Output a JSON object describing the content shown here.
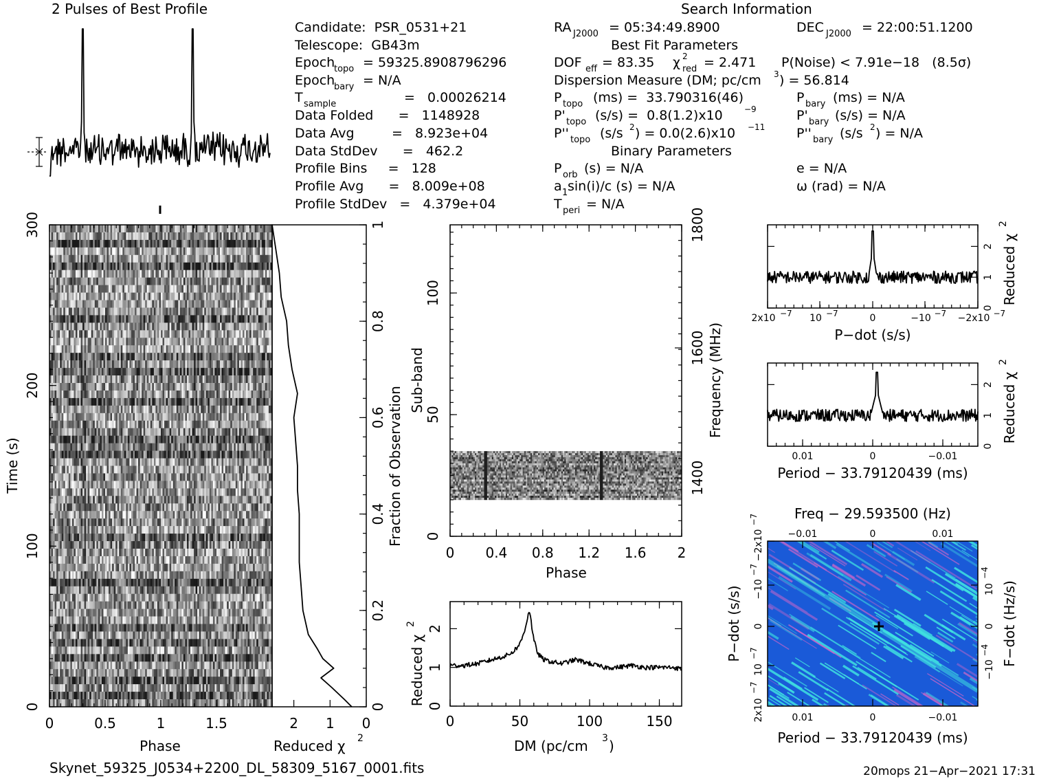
{
  "header": {
    "profile_title": "2 Pulses of Best Profile",
    "search_title": "Search Information",
    "best_fit_title": "Best Fit Parameters",
    "binary_title": "Binary Parameters"
  },
  "info": {
    "candidate": "Candidate:  PSR_0531+21",
    "telescope": "Telescope:  GB43m",
    "epoch_topo_label": "Epoch",
    "epoch_topo_sub": "topo",
    "epoch_topo_value": "= 59325.8908796296",
    "epoch_bary_label": "Epoch",
    "epoch_bary_sub": "bary",
    "epoch_bary_value": "= N/A",
    "t_sample_label": "T",
    "t_sample_sub": "sample",
    "t_sample_value": "=   0.00026214",
    "data_folded": "Data Folded      =   1148928",
    "data_avg": "Data Avg         =   8.923e+04",
    "data_stddev": "Data StdDev      =   462.2",
    "profile_bins": "Profile Bins     =   128",
    "profile_avg": "Profile Avg      =   8.009e+08",
    "profile_stddev": "Profile StdDev   =   4.379e+04"
  },
  "search": {
    "ra_label": "RA",
    "ra_sub": "J2000",
    "ra_value": "= 05:34:49.8900",
    "dec_label": "DEC",
    "dec_sub": "J2000",
    "dec_value": "= 22:00:51.1200",
    "dof_label": "DOF",
    "dof_sub": "eff",
    "dof_value": "= 83.35",
    "chi_label": "χ",
    "chi_sup": "2",
    "chi_sub": "red",
    "chi_value": "= 2.471",
    "pnoise": "P(Noise) < 7.91e−18   (8.5σ)",
    "dm_text": "Dispersion Measure (DM; pc/cm",
    "dm_sup": "3",
    "dm_value": ") = 56.814",
    "ptopo_label": "P",
    "ptopo_sub": "topo",
    "ptopo_value": "(ms) =  33.790316(46)",
    "pbary_label": "P",
    "pbary_sub": "bary",
    "pbary_value": "(ms) = N/A",
    "pdtopo_label": "P'",
    "pdtopo_sub": "topo",
    "pdtopo_value": "(s/s) =  0.8(1.2)x10",
    "pdtopo_exp": "−9",
    "pdbary_label": "P'",
    "pdbary_sub": "bary",
    "pdbary_value": "(s/s) = N/A",
    "pddtopo_label": "P''",
    "pddtopo_sub": "topo",
    "pddtopo_value": "(s/s",
    "pddtopo_sup": "2",
    "pddtopo_value2": ") = 0.0(2.6)x10",
    "pddtopo_exp": "−11",
    "pddbary_label": "P''",
    "pddbary_sub": "bary",
    "pddbary_value": "(s/s",
    "pddbary_sup": "2",
    "pddbary_value2": ") = N/A",
    "porb_label": "P",
    "porb_sub": "orb",
    "porb_value": "(s) = N/A",
    "e_value": "e = N/A",
    "a1_label": "a",
    "a1_sub": "1",
    "a1_value": "sin(i)/c (s) = N/A",
    "omega_value": "ω (rad) = N/A",
    "tperi_label": "T",
    "tperi_sub": "peri",
    "tperi_value": "= N/A"
  },
  "footer": {
    "filename": "Skynet_59325_J0534+2200_DL_58309_5167_0001.fits",
    "stamp": "20mops 21−Apr−2021 17:31"
  },
  "colors": {
    "greyscale": "#888888",
    "ppdot_bg": "#1a5ad8",
    "ppdot_hi": "#3fe0e0",
    "ppdot_lo": "#d066c8"
  },
  "chart_data": [
    {
      "type": "line",
      "id": "profile",
      "title": "2 Pulses of Best Profile",
      "x": [
        0,
        2
      ],
      "peaks_phase": [
        0.3,
        1.3
      ],
      "note_labels": []
    },
    {
      "type": "heatmap",
      "id": "time-phase",
      "xlabel": "Phase",
      "ylabel": "Time (s)",
      "xlim": [
        0,
        2
      ],
      "ylim": [
        0,
        300
      ],
      "xticks": [
        "0",
        "0.5",
        "1",
        "1.5"
      ],
      "yticks": [
        "0",
        "100",
        "200",
        "300"
      ]
    },
    {
      "type": "line",
      "id": "time-chi",
      "xlabel": "Reduced χ",
      "xlabel_sup": "2",
      "ylabel": "Fraction of Observation",
      "xlim": [
        2.6,
        0
      ],
      "ylim": [
        0,
        1
      ],
      "xticks": [
        "2",
        "1",
        "0"
      ],
      "yticks": [
        "0",
        "0.2",
        "0.4",
        "0.6",
        "0.8",
        "1"
      ],
      "fraction": [
        0,
        0.015,
        0.04,
        0.06,
        0.08,
        0.1,
        0.12,
        0.15,
        0.2,
        0.25,
        0.3,
        0.35,
        0.4,
        0.45,
        0.5,
        0.55,
        0.6,
        0.65,
        0.7,
        0.75,
        0.8,
        0.85,
        0.9,
        0.95,
        1
      ],
      "chi": [
        0.4,
        0.6,
        0.95,
        1.25,
        0.9,
        1.2,
        1.35,
        1.6,
        1.75,
        1.8,
        1.85,
        1.85,
        1.85,
        1.9,
        1.9,
        1.95,
        2.0,
        1.9,
        2.05,
        2.15,
        2.2,
        2.35,
        2.4,
        2.5,
        2.6
      ]
    },
    {
      "type": "heatmap",
      "id": "subband-phase",
      "xlabel": "Phase",
      "ylabel": "Sub-band",
      "ylabel2": "Frequency (MHz)",
      "xlim": [
        0,
        2
      ],
      "ylim": [
        0,
        128
      ],
      "xticks": [
        "0",
        "0.4",
        "0.8",
        "1.2",
        "1.6",
        "2"
      ],
      "yticks": [
        "0",
        "50",
        "100"
      ],
      "freq_ticks": [
        "1400",
        "1600",
        "1800"
      ],
      "band_subband": [
        15,
        35
      ]
    },
    {
      "type": "line",
      "id": "dm-chi",
      "xlabel": "DM (pc/cm",
      "xlabel_sup": "3",
      "xlabel_end": ")",
      "ylabel": "Reduced χ",
      "ylabel_sup": "2",
      "xlim": [
        0,
        166
      ],
      "ylim": [
        0,
        2.7
      ],
      "xticks": [
        "0",
        "50",
        "100",
        "150"
      ],
      "yticks": [
        "0",
        "1",
        "2"
      ],
      "x": [
        0,
        10,
        20,
        30,
        40,
        45,
        50,
        53,
        55,
        56.8,
        58,
        60,
        63,
        67,
        72,
        80,
        90,
        100,
        110,
        120,
        130,
        140,
        150,
        160,
        166
      ],
      "y": [
        1.05,
        1.05,
        1.1,
        1.2,
        1.3,
        1.4,
        1.6,
        1.9,
        2.2,
        2.5,
        2.2,
        1.7,
        1.35,
        1.2,
        1.15,
        1.1,
        1.2,
        1.1,
        1.0,
        1.0,
        1.05,
        1.0,
        1.0,
        1.0,
        0.95
      ]
    },
    {
      "type": "line",
      "id": "pdot-chi",
      "xlabel": "P−dot (s/s)",
      "ylabel": "Reduced χ",
      "ylabel_sup": "2",
      "xticks": [
        "2x10",
        "10",
        "0",
        "−10",
        "−2x10"
      ],
      "xticks_exp": [
        "−7",
        "−7",
        "",
        "−7",
        "−7"
      ],
      "yticks": [
        "0",
        "1",
        "2"
      ],
      "peak": 2.5,
      "baseline": 1.0
    },
    {
      "type": "line",
      "id": "period-chi",
      "xlabel": "Period − 33.79120439 (ms)",
      "ylabel": "Reduced χ",
      "ylabel_sup": "2",
      "xticks": [
        "0.01",
        "0",
        "−0.01"
      ],
      "yticks": [
        "0",
        "1",
        "2"
      ],
      "peak": 2.4,
      "baseline": 1.0
    },
    {
      "type": "heatmap",
      "id": "ppdot",
      "title": "Freq − 29.593500 (Hz)",
      "xlabel": "Period − 33.79120439 (ms)",
      "ylabel": "P−dot (s/s)",
      "ylabel2": "F−dot (Hz/s)",
      "top_ticks": [
        "−0.01",
        "0",
        "0.01"
      ],
      "bottom_ticks": [
        "0.01",
        "0",
        "−0.01"
      ],
      "left_ticks": [
        "2x10",
        "10",
        "0",
        "−10",
        "−2x10"
      ],
      "left_exp": [
        "−7",
        "−7",
        "",
        "−7",
        "−7"
      ],
      "right_ticks": [
        "10",
        "0",
        "−10"
      ],
      "right_exp": [
        "−4",
        "",
        "−4"
      ]
    }
  ]
}
